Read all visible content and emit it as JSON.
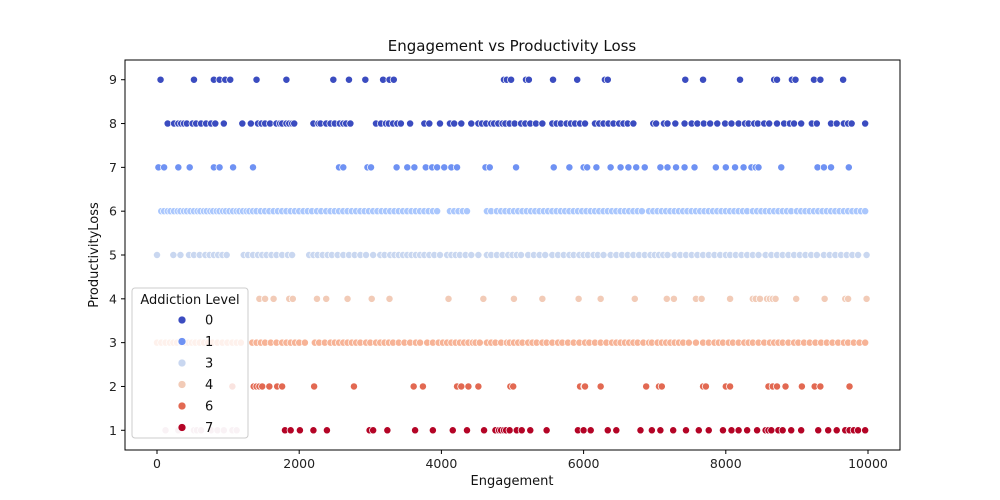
{
  "chart_data": {
    "type": "scatter",
    "title": "Engagement vs Productivity Loss",
    "xlabel": "Engagement",
    "ylabel": "ProductivityLoss",
    "xlim": [
      -450,
      10450
    ],
    "ylim": [
      0.55,
      9.45
    ],
    "x_ticks": [
      0,
      2000,
      4000,
      6000,
      8000,
      10000
    ],
    "y_ticks": [
      1,
      2,
      3,
      4,
      5,
      6,
      7,
      8,
      9
    ],
    "grid": false,
    "legend": {
      "title": "Addiction Level",
      "placement": "lower-left"
    },
    "series": [
      {
        "name": "0",
        "color": "#3b4cc0",
        "y": 9,
        "x": [
          50,
          520,
          800,
          880,
          960,
          1030,
          1400,
          1820,
          2480,
          2700,
          2930,
          3180,
          3270,
          3330,
          4880,
          4920,
          4980,
          5190,
          5230,
          5570,
          5910,
          6300,
          6340,
          7430,
          7680,
          8200,
          8680,
          8720,
          8930,
          8980,
          9240,
          9330,
          9650
        ]
      },
      {
        "name": "0",
        "color": "#3b4cc0",
        "y": 8,
        "x": [
          150,
          240,
          300,
          340,
          380,
          420,
          500,
          550,
          620,
          690,
          760,
          820,
          940,
          1200,
          1320,
          1420,
          1470,
          1520,
          1590,
          1680,
          1730,
          1760,
          1820,
          1860,
          1900,
          1930,
          2200,
          2270,
          2300,
          2380,
          2440,
          2500,
          2570,
          2620,
          2660,
          2720,
          3080,
          3150,
          3220,
          3260,
          3320,
          3380,
          3430,
          3560,
          3760,
          3830,
          3980,
          4120,
          4180,
          4280,
          4420,
          4520,
          4570,
          4630,
          4700,
          4740,
          4800,
          4860,
          4900,
          4960,
          5030,
          5120,
          5180,
          5250,
          5330,
          5420,
          5560,
          5620,
          5680,
          5760,
          5820,
          5880,
          5950,
          6020,
          6160,
          6220,
          6280,
          6350,
          6420,
          6500,
          6560,
          6620,
          6700,
          6980,
          7020,
          7130,
          7180,
          7290,
          7420,
          7520,
          7600,
          7690,
          7780,
          7880,
          7990,
          8080,
          8180,
          8270,
          8320,
          8400,
          8450,
          8540,
          8610,
          8720,
          8820,
          8900,
          8960,
          9060,
          9210,
          9280,
          9480,
          9560,
          9660,
          9720,
          9770,
          9960
        ]
      },
      {
        "name": "1",
        "color": "#6f92f3",
        "y": 7,
        "x": [
          20,
          100,
          300,
          460,
          800,
          880,
          1070,
          1350,
          2560,
          2620,
          2960,
          3010,
          3370,
          3520,
          3620,
          3780,
          3870,
          3940,
          4040,
          4140,
          4220,
          4620,
          4680,
          5050,
          5580,
          5800,
          6000,
          6050,
          6180,
          6380,
          6520,
          6630,
          6740,
          6860,
          7080,
          7180,
          7300,
          7420,
          7560,
          7860,
          8000,
          8130,
          8250,
          8360,
          8420,
          8460,
          8780,
          9290,
          9380,
          9480,
          9730
        ]
      },
      {
        "name": "3",
        "color": "#aac7fd",
        "y": 6,
        "x": [
          60,
          100,
          150,
          190,
          240,
          290,
          330,
          380,
          420,
          470,
          520,
          570,
          610,
          660,
          700,
          750,
          790,
          840,
          880,
          930,
          970,
          1020,
          1070,
          1120,
          1160,
          1210,
          1260,
          1300,
          1350,
          1400,
          1460,
          1520,
          1580,
          1640,
          1700,
          1760,
          1820,
          1880,
          1940,
          2000,
          2060,
          2120,
          2180,
          2250,
          2310,
          2380,
          2440,
          2500,
          2560,
          2620,
          2680,
          2740,
          2800,
          2860,
          2920,
          2980,
          3040,
          3100,
          3160,
          3220,
          3280,
          3340,
          3400,
          3460,
          3520,
          3580,
          3640,
          3700,
          3760,
          3820,
          3880,
          3940,
          4120,
          4180,
          4240,
          4300,
          4360,
          4640,
          4700,
          4780,
          4840,
          4900,
          4960,
          5020,
          5080,
          5140,
          5200,
          5260,
          5320,
          5380,
          5440,
          5500,
          5560,
          5620,
          5680,
          5740,
          5800,
          5860,
          5920,
          5980,
          6040,
          6100,
          6160,
          6220,
          6280,
          6340,
          6400,
          6460,
          6520,
          6580,
          6640,
          6700,
          6760,
          6820,
          6920,
          6980,
          7040,
          7100,
          7160,
          7220,
          7280,
          7340,
          7400,
          7460,
          7520,
          7580,
          7640,
          7700,
          7760,
          7820,
          7880,
          7940,
          8000,
          8060,
          8120,
          8180,
          8240,
          8300,
          8380,
          8440,
          8500,
          8560,
          8620,
          8680,
          8740,
          8800,
          8860,
          8920,
          9000,
          9060,
          9120,
          9180,
          9240,
          9300,
          9360,
          9420,
          9480,
          9540,
          9600,
          9660,
          9720,
          9780,
          9840,
          9900,
          9960
        ]
      },
      {
        "name": "3",
        "color": "#c9d7f0",
        "y": 5,
        "x": [
          0,
          230,
          330,
          450,
          520,
          600,
          680,
          740,
          800,
          860,
          920,
          980,
          1220,
          1280,
          1350,
          1420,
          1480,
          1540,
          1610,
          1680,
          1760,
          1840,
          1900,
          2140,
          2200,
          2260,
          2330,
          2400,
          2460,
          2540,
          2620,
          2700,
          2780,
          2860,
          2940,
          3040,
          3140,
          3200,
          3280,
          3340,
          3400,
          3460,
          3520,
          3580,
          3640,
          3700,
          3760,
          3830,
          3900,
          3980,
          4080,
          4140,
          4200,
          4260,
          4340,
          4420,
          4520,
          4640,
          4700,
          4780,
          4860,
          4940,
          5000,
          5060,
          5120,
          5220,
          5300,
          5380,
          5460,
          5560,
          5640,
          5720,
          5800,
          5860,
          5940,
          6000,
          6060,
          6140,
          6200,
          6280,
          6380,
          6460,
          6540,
          6620,
          6700,
          6780,
          6860,
          6940,
          7000,
          7060,
          7120,
          7180,
          7280,
          7360,
          7440,
          7520,
          7600,
          7680,
          7760,
          7840,
          7920,
          8000,
          8060,
          8140,
          8220,
          8300,
          8380,
          8460,
          8560,
          8640,
          8720,
          8800,
          8880,
          8960,
          9040,
          9120,
          9200,
          9280,
          9380,
          9460,
          9540,
          9620,
          9700,
          9780,
          9860,
          9980
        ]
      },
      {
        "name": "4",
        "color": "#f2cbb7",
        "y": 4,
        "x": [
          1440,
          1520,
          1640,
          1860,
          1910,
          2250,
          2380,
          2680,
          3020,
          3270,
          4100,
          4590,
          5020,
          5420,
          5930,
          6240,
          6720,
          7170,
          7270,
          7580,
          7660,
          8060,
          8380,
          8420,
          8480,
          8580,
          8620,
          8660,
          8700,
          8990,
          9390,
          9680,
          9720,
          9980
        ]
      },
      {
        "name": "4",
        "color": "#f7b396",
        "y": 3,
        "x": [
          0,
          60,
          120,
          180,
          230,
          280,
          340,
          390,
          440,
          490,
          540,
          600,
          660,
          720,
          780,
          850,
          920,
          990,
          1060,
          1120,
          1180,
          1340,
          1400,
          1460,
          1520,
          1600,
          1680,
          1760,
          1820,
          1880,
          1940,
          2000,
          2080,
          2220,
          2280,
          2360,
          2440,
          2500,
          2560,
          2620,
          2680,
          2740,
          2800,
          2860,
          2940,
          3000,
          3080,
          3140,
          3200,
          3260,
          3320,
          3400,
          3480,
          3560,
          3640,
          3700,
          3800,
          3880,
          3960,
          4020,
          4080,
          4140,
          4200,
          4260,
          4320,
          4380,
          4440,
          4480,
          4540,
          4640,
          4700,
          4760,
          4840,
          4920,
          4960,
          5020,
          5080,
          5140,
          5220,
          5280,
          5340,
          5420,
          5480,
          5560,
          5640,
          5700,
          5780,
          5860,
          5940,
          6020,
          6080,
          6160,
          6240,
          6320,
          6400,
          6460,
          6520,
          6580,
          6640,
          6700,
          6760,
          6840,
          6920,
          6960,
          7040,
          7100,
          7160,
          7220,
          7280,
          7340,
          7400,
          7480,
          7580,
          7680,
          7760,
          7840,
          7900,
          7960,
          8040,
          8100,
          8180,
          8260,
          8320,
          8380,
          8460,
          8540,
          8620,
          8680,
          8740,
          8800,
          8880,
          8960,
          9020,
          9100,
          9180,
          9260,
          9340,
          9420,
          9500,
          9580,
          9660,
          9720,
          9800,
          9880,
          9960
        ]
      },
      {
        "name": "6",
        "color": "#e26952",
        "y": 2,
        "x": [
          1060,
          1360,
          1400,
          1440,
          1480,
          1580,
          1690,
          1760,
          2210,
          2770,
          3610,
          3740,
          4220,
          4280,
          4380,
          4520,
          4970,
          5010,
          5950,
          6010,
          6020,
          6240,
          6880,
          7060,
          7100,
          7680,
          7720,
          8000,
          8060,
          8600,
          8660,
          8720,
          8840,
          9070,
          9250,
          9330,
          9740
        ]
      },
      {
        "name": "7",
        "color": "#b40426",
        "y": 1,
        "x": [
          1800,
          1880,
          2010,
          2200,
          2390,
          2990,
          3040,
          3240,
          3630,
          3880,
          4160,
          4360,
          4600,
          4760,
          4810,
          4840,
          4880,
          4910,
          4960,
          5060,
          5130,
          5250,
          5480,
          5920,
          6000,
          6100,
          6340,
          6460,
          6800,
          6960,
          7080,
          7260,
          7440,
          7620,
          7760,
          7960,
          8080,
          8180,
          8300,
          8440,
          8560,
          8600,
          8640,
          8740,
          8800,
          8920,
          9060,
          9300,
          9440,
          9560,
          9680,
          9740,
          9800,
          9860,
          9960
        ]
      },
      {
        "name": "7",
        "color": "#ddb8c8",
        "y": 1,
        "x": [
          120,
          300,
          520,
          560,
          620,
          760,
          850,
          940,
          1060,
          1120
        ]
      }
    ],
    "legend_entries": [
      {
        "label": "0",
        "color": "#3b4cc0"
      },
      {
        "label": "1",
        "color": "#6f92f3"
      },
      {
        "label": "3",
        "color": "#c9d7f0"
      },
      {
        "label": "4",
        "color": "#f2cbb7"
      },
      {
        "label": "6",
        "color": "#e26952"
      },
      {
        "label": "7",
        "color": "#b40426"
      }
    ]
  }
}
